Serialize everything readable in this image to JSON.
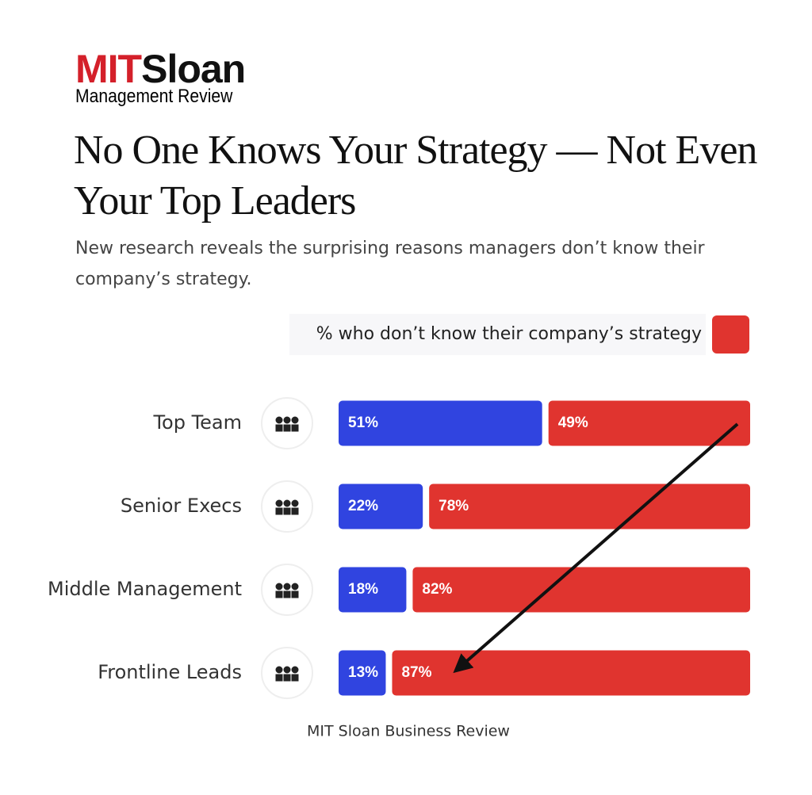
{
  "header": {
    "logo_red": "MIT",
    "logo_black": "Sloan",
    "logo_sub": "Management Review",
    "title": "No One Knows Your Strategy — Not Even Your Top Leaders",
    "subtitle": "New research reveals the surprising reasons managers don’t know their company’s strategy."
  },
  "chart_data": {
    "type": "stacked-bar-horizontal",
    "categories": [
      "Top Team",
      "Senior Execs",
      "Middle Management",
      "Frontline Leads"
    ],
    "series": [
      {
        "color": "#3044e0",
        "values": [
          51,
          22,
          18,
          13
        ],
        "value_labels": [
          "51%",
          "22%",
          "18%",
          "13%"
        ]
      },
      {
        "name": "% who don’t know their company’s strategy",
        "color": "#e0342f",
        "values": [
          49,
          78,
          82,
          87
        ],
        "value_labels": [
          "49%",
          "78%",
          "82%",
          "87%"
        ]
      }
    ],
    "legend": "top-right",
    "source": "MIT Sloan Business Review"
  }
}
